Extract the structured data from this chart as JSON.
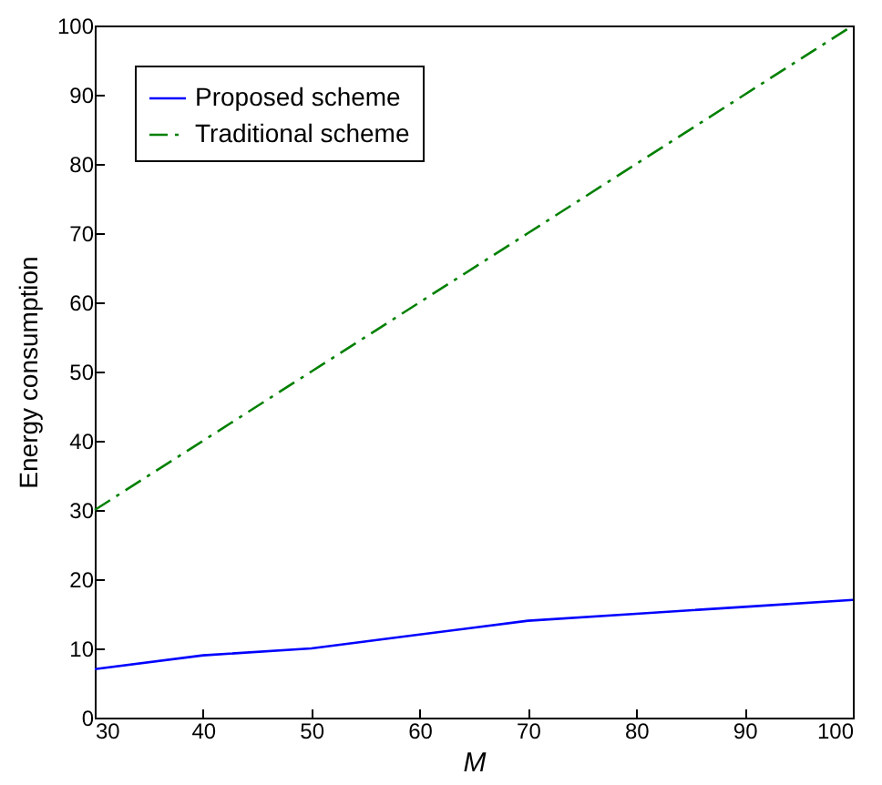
{
  "chart_data": {
    "type": "line",
    "xlabel": "M",
    "ylabel": "Energy consumption",
    "x": [
      30,
      40,
      50,
      60,
      70,
      80,
      90,
      100
    ],
    "series": [
      {
        "name": "Proposed scheme",
        "color": "#0000ff",
        "line_style": "solid",
        "values": [
          7,
          9,
          10,
          12,
          14,
          15,
          16,
          17
        ]
      },
      {
        "name": "Traditional scheme",
        "color": "#008000",
        "line_style": "dashdot",
        "values": [
          30,
          40,
          50,
          60,
          70,
          80,
          90,
          100
        ]
      }
    ],
    "xlim": [
      30,
      100
    ],
    "xticks": [
      30,
      40,
      50,
      60,
      70,
      80,
      90,
      100
    ],
    "ylim": [
      0,
      100
    ],
    "yticks": [
      0,
      10,
      20,
      30,
      40,
      50,
      60,
      70,
      80,
      90,
      100
    ],
    "grid": false,
    "legend": "top left",
    "marker": "none"
  }
}
